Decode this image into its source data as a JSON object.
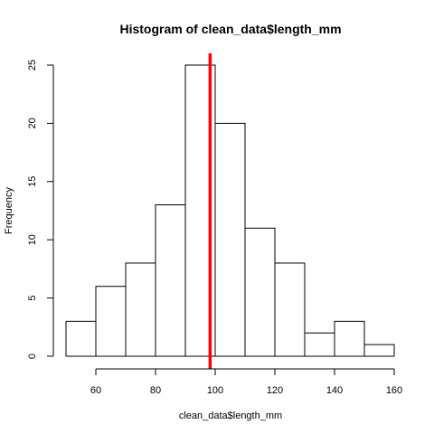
{
  "chart_data": {
    "type": "bar",
    "subtype": "histogram",
    "title": "Histogram of clean_data$length_mm",
    "xlabel": "clean_data$length_mm",
    "ylabel": "Frequency",
    "bins": [
      {
        "start": 50,
        "end": 60,
        "count": 3
      },
      {
        "start": 60,
        "end": 70,
        "count": 6
      },
      {
        "start": 70,
        "end": 80,
        "count": 8
      },
      {
        "start": 80,
        "end": 90,
        "count": 13
      },
      {
        "start": 90,
        "end": 100,
        "count": 25
      },
      {
        "start": 100,
        "end": 110,
        "count": 20
      },
      {
        "start": 110,
        "end": 120,
        "count": 11
      },
      {
        "start": 120,
        "end": 130,
        "count": 8
      },
      {
        "start": 130,
        "end": 140,
        "count": 2
      },
      {
        "start": 140,
        "end": 150,
        "count": 3
      },
      {
        "start": 150,
        "end": 160,
        "count": 1
      }
    ],
    "xlim": [
      50,
      160
    ],
    "ylim": [
      0,
      25
    ],
    "x_ticks": [
      60,
      80,
      100,
      120,
      140,
      160
    ],
    "y_ticks": [
      0,
      5,
      10,
      15,
      20,
      25
    ],
    "reference_line": {
      "x": 98.3,
      "color": "#ff0000"
    },
    "bar_fill": "#ffffff",
    "bar_stroke": "#000000",
    "grid": false,
    "legend": "none"
  }
}
